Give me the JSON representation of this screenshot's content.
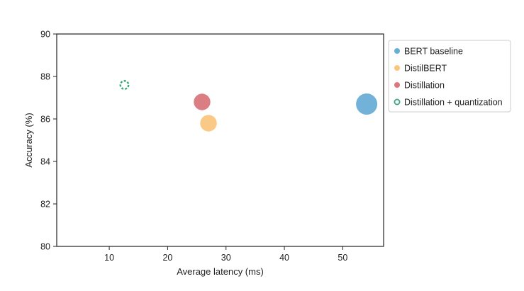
{
  "chart_data": {
    "type": "scatter",
    "title": "",
    "xlabel": "Average latency (ms)",
    "ylabel": "Accuracy (%)",
    "xlim": [
      1,
      57
    ],
    "ylim": [
      80,
      90
    ],
    "xticks": [
      10,
      20,
      30,
      40,
      50
    ],
    "yticks": [
      80,
      82,
      84,
      86,
      88,
      90
    ],
    "grid": false,
    "legend_position": "outside-right-top",
    "series": [
      {
        "name": "BERT baseline",
        "x": 54.1,
        "y": 86.7,
        "size_scale": 1.0,
        "color": "#6aaed6",
        "marker": "filled-circle"
      },
      {
        "name": "DistilBERT",
        "x": 27.0,
        "y": 85.8,
        "size_scale": 0.78,
        "color": "#f9c67e",
        "marker": "filled-circle"
      },
      {
        "name": "Distillation",
        "x": 25.9,
        "y": 86.8,
        "size_scale": 0.78,
        "color": "#d9777d",
        "marker": "filled-circle"
      },
      {
        "name": "Distillation + quantization",
        "x": 12.6,
        "y": 87.6,
        "size_scale": 0.45,
        "color": "#3aa87a",
        "marker": "dashed-ring"
      }
    ]
  }
}
